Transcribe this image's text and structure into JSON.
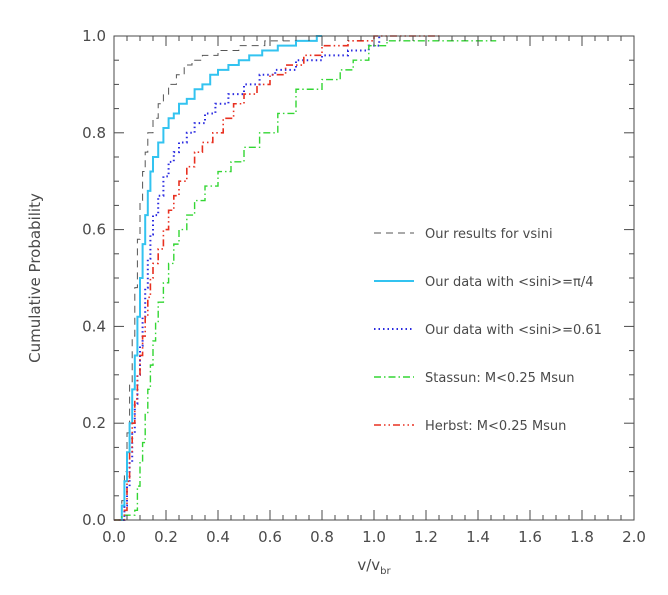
{
  "chart_data": {
    "type": "line",
    "title": "",
    "xlabel": "v/v",
    "xlabel_sub": "br",
    "ylabel": "Cumulative Probability",
    "xlim": [
      0.0,
      2.0
    ],
    "ylim": [
      0.0,
      1.0
    ],
    "xticks": [
      0.0,
      0.2,
      0.4,
      0.6,
      0.8,
      1.0,
      1.2,
      1.4,
      1.6,
      1.8,
      2.0
    ],
    "xtick_labels": [
      "0.0",
      "0.2",
      "0.4",
      "0.6",
      "0.8",
      "1.0",
      "1.2",
      "1.4",
      "1.6",
      "1.8",
      "2.0"
    ],
    "yticks": [
      0.0,
      0.2,
      0.4,
      0.6,
      0.8,
      1.0
    ],
    "ytick_labels": [
      "0.0",
      "0.2",
      "0.4",
      "0.6",
      "0.8",
      "1.0"
    ],
    "grid": false,
    "legend_position": "right-middle",
    "series": [
      {
        "name": "Our results for vsini",
        "color": "#555555",
        "dash": "dashed",
        "step": true,
        "points": [
          [
            0.0,
            0.0
          ],
          [
            0.03,
            0.04
          ],
          [
            0.04,
            0.1
          ],
          [
            0.05,
            0.18
          ],
          [
            0.06,
            0.28
          ],
          [
            0.07,
            0.38
          ],
          [
            0.08,
            0.48
          ],
          [
            0.09,
            0.58
          ],
          [
            0.1,
            0.66
          ],
          [
            0.11,
            0.72
          ],
          [
            0.12,
            0.76
          ],
          [
            0.13,
            0.8
          ],
          [
            0.15,
            0.83
          ],
          [
            0.17,
            0.86
          ],
          [
            0.19,
            0.88
          ],
          [
            0.21,
            0.9
          ],
          [
            0.24,
            0.92
          ],
          [
            0.27,
            0.94
          ],
          [
            0.3,
            0.95
          ],
          [
            0.34,
            0.96
          ],
          [
            0.4,
            0.97
          ],
          [
            0.48,
            0.98
          ],
          [
            0.58,
            0.99
          ],
          [
            0.7,
            1.0
          ],
          [
            0.8,
            1.0
          ]
        ]
      },
      {
        "name": "Our data with <sini>=π/4",
        "color": "#33c3f0",
        "dash": "solid",
        "step": true,
        "points": [
          [
            0.0,
            0.0
          ],
          [
            0.03,
            0.03
          ],
          [
            0.04,
            0.08
          ],
          [
            0.05,
            0.14
          ],
          [
            0.06,
            0.2
          ],
          [
            0.07,
            0.27
          ],
          [
            0.08,
            0.34
          ],
          [
            0.09,
            0.42
          ],
          [
            0.1,
            0.5
          ],
          [
            0.11,
            0.57
          ],
          [
            0.12,
            0.63
          ],
          [
            0.13,
            0.68
          ],
          [
            0.14,
            0.72
          ],
          [
            0.15,
            0.75
          ],
          [
            0.17,
            0.78
          ],
          [
            0.19,
            0.81
          ],
          [
            0.21,
            0.83
          ],
          [
            0.23,
            0.84
          ],
          [
            0.25,
            0.86
          ],
          [
            0.28,
            0.87
          ],
          [
            0.31,
            0.89
          ],
          [
            0.34,
            0.9
          ],
          [
            0.37,
            0.92
          ],
          [
            0.4,
            0.93
          ],
          [
            0.44,
            0.94
          ],
          [
            0.48,
            0.95
          ],
          [
            0.52,
            0.96
          ],
          [
            0.57,
            0.97
          ],
          [
            0.63,
            0.98
          ],
          [
            0.7,
            0.99
          ],
          [
            0.78,
            1.0
          ],
          [
            0.8,
            1.0
          ]
        ]
      },
      {
        "name": "Our data with <sini>=0.61",
        "color": "#2a2ae0",
        "dash": "dotted",
        "step": true,
        "points": [
          [
            0.0,
            0.0
          ],
          [
            0.04,
            0.03
          ],
          [
            0.05,
            0.07
          ],
          [
            0.06,
            0.12
          ],
          [
            0.07,
            0.18
          ],
          [
            0.08,
            0.24
          ],
          [
            0.09,
            0.3
          ],
          [
            0.1,
            0.36
          ],
          [
            0.11,
            0.42
          ],
          [
            0.12,
            0.48
          ],
          [
            0.13,
            0.54
          ],
          [
            0.14,
            0.59
          ],
          [
            0.15,
            0.63
          ],
          [
            0.17,
            0.67
          ],
          [
            0.19,
            0.71
          ],
          [
            0.21,
            0.74
          ],
          [
            0.23,
            0.76
          ],
          [
            0.25,
            0.78
          ],
          [
            0.28,
            0.8
          ],
          [
            0.31,
            0.82
          ],
          [
            0.35,
            0.84
          ],
          [
            0.39,
            0.86
          ],
          [
            0.44,
            0.88
          ],
          [
            0.5,
            0.9
          ],
          [
            0.56,
            0.92
          ],
          [
            0.62,
            0.93
          ],
          [
            0.7,
            0.95
          ],
          [
            0.8,
            0.96
          ],
          [
            0.9,
            0.97
          ],
          [
            0.98,
            0.98
          ],
          [
            1.02,
            1.0
          ]
        ]
      },
      {
        "name": "Stassun: M<0.25 Msun",
        "color": "#33d633",
        "dash": "dashdot",
        "step": true,
        "points": [
          [
            0.0,
            0.0
          ],
          [
            0.03,
            0.01
          ],
          [
            0.08,
            0.02
          ],
          [
            0.09,
            0.07
          ],
          [
            0.1,
            0.12
          ],
          [
            0.11,
            0.16
          ],
          [
            0.12,
            0.22
          ],
          [
            0.13,
            0.27
          ],
          [
            0.14,
            0.32
          ],
          [
            0.15,
            0.37
          ],
          [
            0.16,
            0.41
          ],
          [
            0.17,
            0.45
          ],
          [
            0.19,
            0.49
          ],
          [
            0.21,
            0.53
          ],
          [
            0.23,
            0.57
          ],
          [
            0.25,
            0.6
          ],
          [
            0.28,
            0.63
          ],
          [
            0.31,
            0.66
          ],
          [
            0.35,
            0.69
          ],
          [
            0.4,
            0.72
          ],
          [
            0.45,
            0.74
          ],
          [
            0.5,
            0.77
          ],
          [
            0.56,
            0.8
          ],
          [
            0.63,
            0.84
          ],
          [
            0.7,
            0.89
          ],
          [
            0.8,
            0.91
          ],
          [
            0.87,
            0.93
          ],
          [
            0.92,
            0.95
          ],
          [
            0.98,
            0.98
          ],
          [
            1.05,
            0.99
          ],
          [
            1.47,
            0.99
          ]
        ]
      },
      {
        "name": "Herbst: M<0.25 Msun",
        "color": "#e83020",
        "dash": "dashdotdot",
        "step": true,
        "points": [
          [
            0.0,
            0.0
          ],
          [
            0.04,
            0.02
          ],
          [
            0.05,
            0.08
          ],
          [
            0.06,
            0.14
          ],
          [
            0.07,
            0.2
          ],
          [
            0.08,
            0.25
          ],
          [
            0.09,
            0.3
          ],
          [
            0.1,
            0.34
          ],
          [
            0.11,
            0.38
          ],
          [
            0.12,
            0.42
          ],
          [
            0.13,
            0.46
          ],
          [
            0.14,
            0.5
          ],
          [
            0.15,
            0.53
          ],
          [
            0.17,
            0.56
          ],
          [
            0.19,
            0.6
          ],
          [
            0.21,
            0.64
          ],
          [
            0.23,
            0.67
          ],
          [
            0.25,
            0.7
          ],
          [
            0.28,
            0.73
          ],
          [
            0.31,
            0.76
          ],
          [
            0.34,
            0.78
          ],
          [
            0.38,
            0.8
          ],
          [
            0.42,
            0.83
          ],
          [
            0.46,
            0.86
          ],
          [
            0.5,
            0.88
          ],
          [
            0.55,
            0.9
          ],
          [
            0.6,
            0.92
          ],
          [
            0.66,
            0.94
          ],
          [
            0.73,
            0.96
          ],
          [
            0.8,
            0.98
          ],
          [
            0.9,
            0.99
          ],
          [
            1.0,
            1.0
          ],
          [
            1.26,
            1.0
          ]
        ]
      }
    ]
  }
}
